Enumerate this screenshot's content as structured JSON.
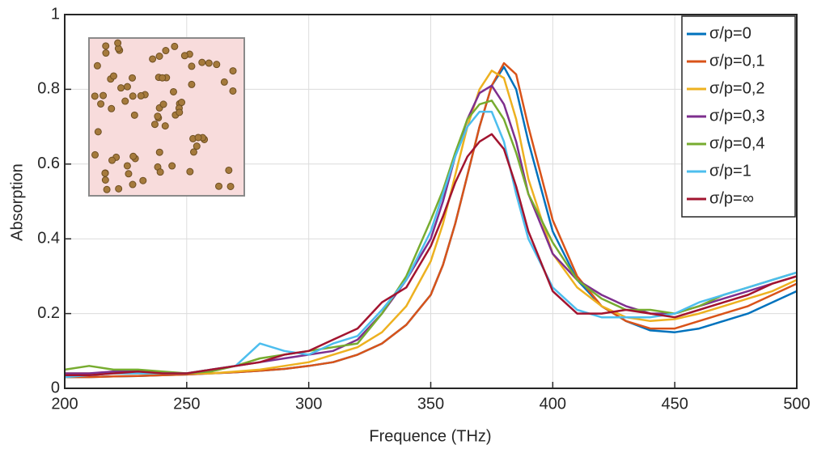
{
  "chart_data": {
    "type": "line",
    "x_label": "Frequence (THz)",
    "y_label": "Absorption",
    "x": [
      200,
      210,
      220,
      230,
      240,
      250,
      260,
      270,
      280,
      290,
      300,
      310,
      320,
      330,
      340,
      350,
      355,
      360,
      365,
      370,
      375,
      380,
      385,
      390,
      400,
      410,
      420,
      430,
      440,
      450,
      460,
      470,
      480,
      490,
      500
    ],
    "series": [
      {
        "name": "σ/p=0",
        "color": "#0072BD",
        "values": [
          0.03,
          0.03,
          0.032,
          0.033,
          0.035,
          0.037,
          0.04,
          0.043,
          0.047,
          0.052,
          0.06,
          0.07,
          0.09,
          0.12,
          0.17,
          0.25,
          0.33,
          0.44,
          0.57,
          0.7,
          0.81,
          0.86,
          0.8,
          0.66,
          0.42,
          0.29,
          0.22,
          0.18,
          0.155,
          0.15,
          0.16,
          0.18,
          0.2,
          0.23,
          0.26
        ]
      },
      {
        "name": "σ/p=0,1",
        "color": "#D95319",
        "values": [
          0.03,
          0.03,
          0.032,
          0.033,
          0.035,
          0.037,
          0.04,
          0.043,
          0.047,
          0.052,
          0.06,
          0.07,
          0.09,
          0.12,
          0.17,
          0.25,
          0.33,
          0.44,
          0.57,
          0.7,
          0.81,
          0.87,
          0.84,
          0.7,
          0.45,
          0.3,
          0.22,
          0.18,
          0.16,
          0.16,
          0.18,
          0.2,
          0.22,
          0.25,
          0.28
        ]
      },
      {
        "name": "σ/p=0,2",
        "color": "#EDB120",
        "values": [
          0.04,
          0.04,
          0.04,
          0.04,
          0.04,
          0.04,
          0.04,
          0.045,
          0.05,
          0.06,
          0.07,
          0.09,
          0.11,
          0.15,
          0.22,
          0.34,
          0.44,
          0.57,
          0.7,
          0.8,
          0.85,
          0.83,
          0.72,
          0.56,
          0.36,
          0.27,
          0.22,
          0.19,
          0.18,
          0.185,
          0.2,
          0.22,
          0.24,
          0.26,
          0.29
        ]
      },
      {
        "name": "σ/p=0,3",
        "color": "#7E2F8E",
        "values": [
          0.04,
          0.04,
          0.045,
          0.045,
          0.04,
          0.04,
          0.05,
          0.06,
          0.07,
          0.08,
          0.09,
          0.1,
          0.13,
          0.2,
          0.29,
          0.4,
          0.5,
          0.62,
          0.72,
          0.79,
          0.81,
          0.76,
          0.66,
          0.52,
          0.36,
          0.29,
          0.25,
          0.22,
          0.2,
          0.2,
          0.22,
          0.24,
          0.26,
          0.28,
          0.3
        ]
      },
      {
        "name": "σ/p=0,4",
        "color": "#77AC30",
        "values": [
          0.05,
          0.06,
          0.05,
          0.05,
          0.045,
          0.04,
          0.045,
          0.06,
          0.08,
          0.09,
          0.1,
          0.11,
          0.12,
          0.2,
          0.3,
          0.45,
          0.53,
          0.63,
          0.72,
          0.76,
          0.77,
          0.72,
          0.63,
          0.52,
          0.39,
          0.29,
          0.24,
          0.21,
          0.21,
          0.2,
          0.22,
          0.25,
          0.27,
          0.29,
          0.31
        ]
      },
      {
        "name": "σ/p=1",
        "color": "#4DBEEE",
        "values": [
          0.03,
          0.035,
          0.04,
          0.04,
          0.04,
          0.04,
          0.05,
          0.06,
          0.12,
          0.1,
          0.09,
          0.12,
          0.14,
          0.21,
          0.29,
          0.42,
          0.52,
          0.62,
          0.7,
          0.74,
          0.74,
          0.66,
          0.52,
          0.4,
          0.27,
          0.21,
          0.19,
          0.19,
          0.19,
          0.2,
          0.23,
          0.25,
          0.27,
          0.29,
          0.31
        ]
      },
      {
        "name": "σ/p=∞",
        "color": "#A2142F",
        "values": [
          0.035,
          0.035,
          0.04,
          0.045,
          0.04,
          0.04,
          0.05,
          0.06,
          0.07,
          0.09,
          0.1,
          0.13,
          0.16,
          0.23,
          0.27,
          0.38,
          0.46,
          0.55,
          0.62,
          0.66,
          0.68,
          0.64,
          0.54,
          0.42,
          0.26,
          0.2,
          0.2,
          0.21,
          0.2,
          0.19,
          0.21,
          0.23,
          0.25,
          0.28,
          0.3
        ]
      }
    ],
    "xlim": [
      200,
      500
    ],
    "ylim": [
      0,
      1
    ],
    "xticks": [
      200,
      250,
      300,
      350,
      400,
      450,
      500
    ],
    "yticks": [
      0,
      0.2,
      0.4,
      0.6,
      0.8,
      1
    ],
    "grid": true,
    "legend": "top-right"
  }
}
